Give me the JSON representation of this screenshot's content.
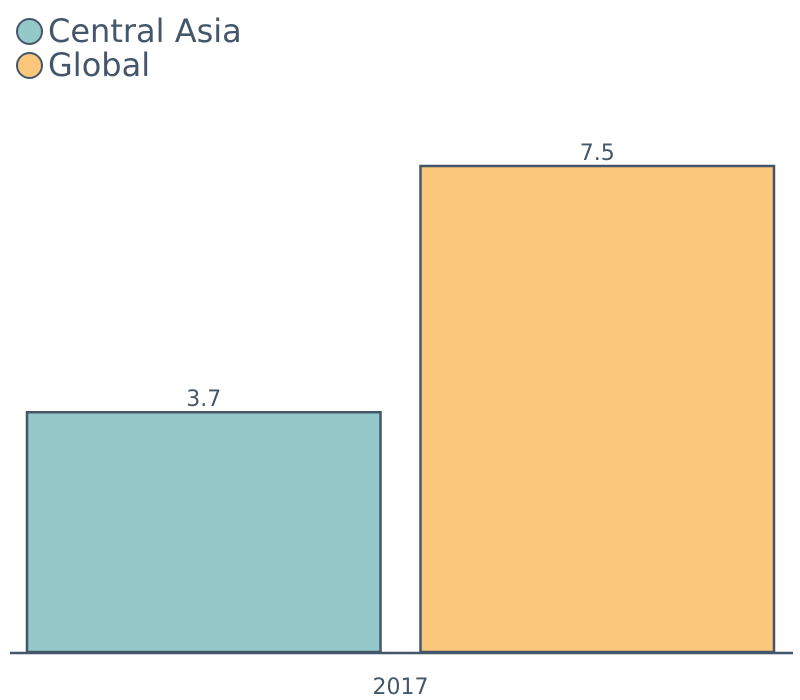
{
  "chart_data": {
    "type": "bar",
    "categories": [
      "2017"
    ],
    "series": [
      {
        "name": "Central Asia",
        "values": [
          3.7
        ],
        "color": "#95c8c8"
      },
      {
        "name": "Global",
        "values": [
          7.5
        ],
        "color": "#fac77b"
      }
    ],
    "value_labels": [
      "3.7",
      "7.5"
    ],
    "ylim": [
      0,
      7.5
    ],
    "axis_color": "#44576a",
    "grid": false,
    "legend_position": "top-left"
  }
}
